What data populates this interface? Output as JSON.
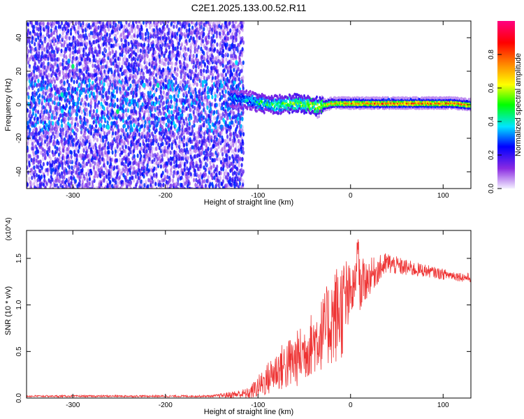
{
  "figure": {
    "title": "C2E1.2025.133.00.52.R11"
  },
  "chart_data": [
    {
      "type": "heatmap",
      "xlabel": "Height of straight line (km)",
      "ylabel": "Frequency (Hz)",
      "xlim": [
        -350,
        130
      ],
      "ylim": [
        -50,
        50
      ],
      "x_ticks": [
        -300,
        -200,
        -100,
        0,
        100
      ],
      "y_ticks": [
        -40,
        -20,
        0,
        20,
        40
      ],
      "grid": false,
      "colorbar": {
        "label": "Normalized spectral amplitude",
        "range": [
          0,
          1
        ],
        "ticks": [
          0.0,
          0.2,
          0.4,
          0.6,
          0.8
        ],
        "colors": [
          "#f4f0ff",
          "#8a2be2",
          "#0000ff",
          "#00e5ff",
          "#00ff00",
          "#ffff00",
          "#ff7f00",
          "#ff0000",
          "#ff0080"
        ]
      },
      "features": [
        {
          "kind": "broadband_noise",
          "x_range": [
            -350,
            -115
          ],
          "freq_range": [
            -50,
            50
          ],
          "level": 0.15
        },
        {
          "kind": "spectral_line",
          "x": [
            -130,
            -110,
            -100,
            -80,
            -60,
            -45,
            -35,
            -20,
            0,
            40,
            80,
            110,
            130
          ],
          "freq": [
            4,
            3,
            1,
            0,
            1,
            0,
            -1,
            1,
            1,
            1,
            1,
            1,
            0
          ],
          "level": [
            0.35,
            0.4,
            0.45,
            0.5,
            0.55,
            0.55,
            0.6,
            0.7,
            0.75,
            0.8,
            0.8,
            0.8,
            0.75
          ]
        }
      ]
    },
    {
      "type": "line",
      "xlabel": "Height of straight line (km)",
      "ylabel": "SNR (10 * v/v)",
      "y_multiplier": "(x10^4)",
      "xlim": [
        -350,
        130
      ],
      "ylim": [
        0,
        1.8
      ],
      "x_ticks": [
        -300,
        -200,
        -100,
        0,
        100
      ],
      "y_ticks": [
        0.0,
        0.5,
        1.0,
        1.5
      ],
      "color": "#ee3333",
      "series": [
        {
          "x": [
            -350,
            -250,
            -150,
            -110,
            -100,
            -90,
            -80,
            -70,
            -60,
            -50,
            -40,
            -30,
            -20,
            -15,
            -10,
            -5,
            0,
            5,
            8,
            10,
            15,
            20,
            30,
            40,
            50,
            60,
            70,
            80,
            90,
            100,
            110,
            120,
            130
          ],
          "y": [
            0.02,
            0.02,
            0.02,
            0.05,
            0.12,
            0.2,
            0.3,
            0.35,
            0.4,
            0.5,
            0.6,
            0.7,
            0.85,
            0.9,
            0.95,
            1.05,
            1.1,
            1.2,
            1.7,
            1.2,
            1.25,
            1.3,
            1.38,
            1.45,
            1.42,
            1.4,
            1.38,
            1.37,
            1.35,
            1.33,
            1.32,
            1.3,
            1.29
          ],
          "envelope": [
            0.01,
            0.01,
            0.01,
            0.06,
            0.12,
            0.18,
            0.22,
            0.28,
            0.3,
            0.32,
            0.35,
            0.4,
            0.5,
            0.55,
            0.55,
            0.5,
            0.3,
            0.25,
            0.1,
            0.3,
            0.25,
            0.2,
            0.15,
            0.12,
            0.1,
            0.09,
            0.08,
            0.07,
            0.06,
            0.06,
            0.05,
            0.05,
            0.05
          ]
        }
      ]
    }
  ]
}
